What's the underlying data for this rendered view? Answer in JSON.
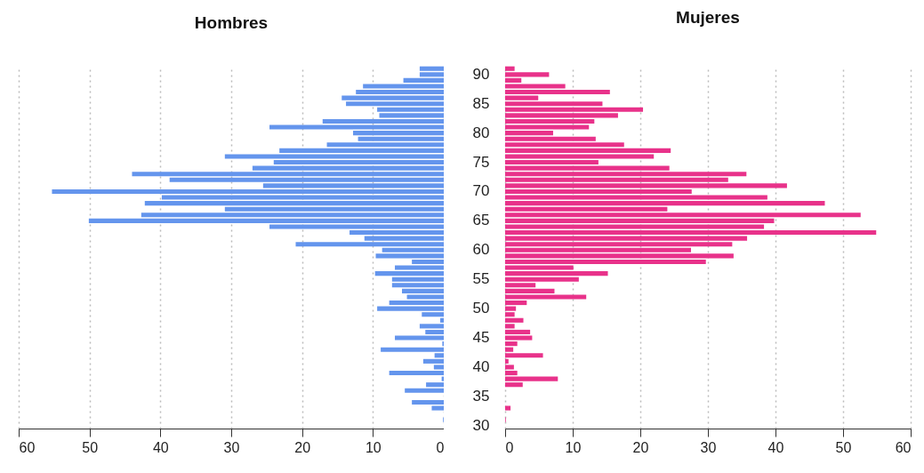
{
  "chart_data": [
    {
      "type": "bar",
      "orientation": "horizontal",
      "title": "Hombres",
      "color": "#6495ed",
      "xlim": [
        60,
        0
      ],
      "xticks": [
        0,
        10,
        20,
        30,
        40,
        50,
        60
      ],
      "grid": "x",
      "tick_labels": "x",
      "categories": [
        null,
        "90",
        null,
        null,
        null,
        null,
        "85",
        null,
        null,
        null,
        null,
        "80",
        null,
        null,
        null,
        null,
        "75",
        null,
        null,
        null,
        null,
        "70",
        null,
        null,
        null,
        null,
        "65",
        null,
        null,
        null,
        null,
        "60",
        null,
        null,
        null,
        null,
        "55",
        null,
        null,
        null,
        null,
        "50",
        null,
        null,
        null,
        null,
        "45",
        null,
        null,
        null,
        null,
        "40",
        null,
        null,
        null,
        null,
        "35",
        null,
        null,
        null,
        null,
        "30"
      ],
      "values": [
        3.4,
        3.4,
        5.7,
        11.4,
        12.4,
        14.4,
        13.8,
        9.4,
        9.1,
        17.1,
        24.6,
        12.8,
        12.1,
        16.5,
        23.2,
        30.9,
        24.0,
        27.0,
        44.0,
        38.7,
        25.5,
        55.3,
        39.8,
        42.2,
        30.9,
        42.7,
        50.1,
        24.6,
        13.3,
        11.2,
        20.9,
        8.7,
        9.6,
        4.5,
        6.9,
        9.7,
        7.3,
        7.3,
        5.9,
        5.2,
        7.7,
        9.4,
        3.1,
        0.5,
        3.4,
        2.6,
        6.9,
        0.2,
        8.9,
        1.3,
        2.9,
        1.4,
        7.7,
        0.3,
        2.5,
        5.5,
        0,
        4.5,
        1.7,
        0,
        0.1,
        0
      ]
    },
    {
      "type": "bar",
      "orientation": "horizontal",
      "title": "Mujeres",
      "color": "#e8328a",
      "xlim": [
        0,
        60
      ],
      "xticks": [
        0,
        10,
        20,
        30,
        40,
        50,
        60
      ],
      "grid": "x",
      "categories": [
        null,
        "90",
        null,
        null,
        null,
        null,
        "85",
        null,
        null,
        null,
        null,
        "80",
        null,
        null,
        null,
        null,
        "75",
        null,
        null,
        null,
        null,
        "70",
        null,
        null,
        null,
        null,
        "65",
        null,
        null,
        null,
        null,
        "60",
        null,
        null,
        null,
        null,
        "55",
        null,
        null,
        null,
        null,
        "50",
        null,
        null,
        null,
        null,
        "45",
        null,
        null,
        null,
        null,
        "40",
        null,
        null,
        null,
        null,
        "35",
        null,
        null,
        null,
        null,
        "30"
      ],
      "values": [
        1.4,
        6.5,
        2.4,
        8.9,
        15.5,
        4.9,
        14.4,
        20.4,
        16.7,
        13.2,
        12.4,
        7.1,
        13.4,
        17.6,
        24.5,
        22.0,
        13.8,
        24.3,
        35.7,
        33.0,
        41.7,
        27.6,
        38.8,
        47.3,
        24.0,
        52.6,
        39.8,
        38.3,
        54.9,
        35.8,
        33.6,
        27.5,
        33.8,
        29.7,
        10.1,
        15.2,
        10.9,
        4.5,
        7.3,
        12.0,
        3.2,
        1.6,
        1.4,
        2.7,
        1.4,
        3.7,
        4.0,
        1.8,
        1.2,
        5.6,
        0.5,
        1.3,
        1.8,
        7.8,
        2.6,
        0,
        0,
        0,
        0.8,
        0,
        0.1,
        0
      ]
    }
  ]
}
